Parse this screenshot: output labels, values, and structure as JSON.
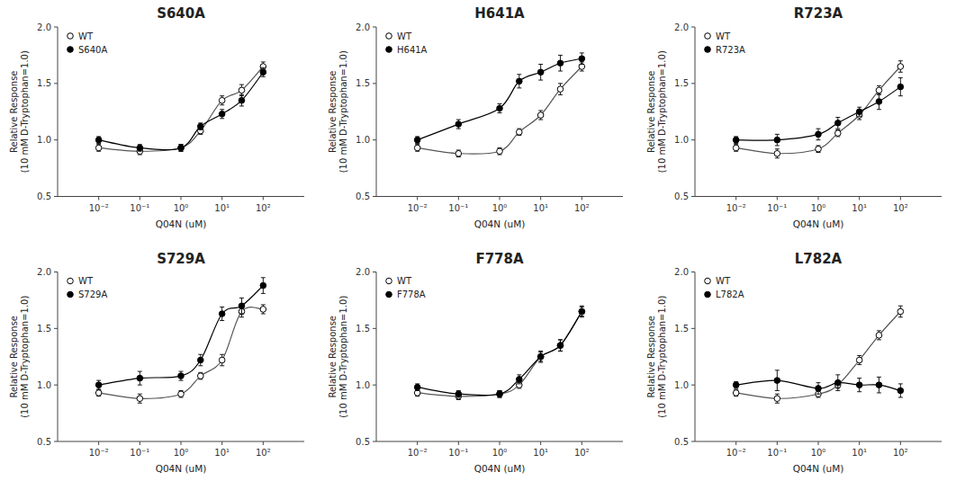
{
  "chart_data": [
    {
      "type": "line",
      "title": "S640A",
      "x_label": "Q04N (uM)",
      "y_label": [
        "Relative Response",
        "(10 mM D-Tryptophan=1.0)"
      ],
      "log": "x",
      "xlim": [
        0.001,
        1000
      ],
      "ylim": [
        0.5,
        2.0
      ],
      "xticks": [
        {
          "value": 0.01,
          "label": "10⁻²"
        },
        {
          "value": 0.1,
          "label": "10⁻¹"
        },
        {
          "value": 1,
          "label": "10⁰"
        },
        {
          "value": 10,
          "label": "10¹"
        },
        {
          "value": 100,
          "label": "10²"
        }
      ],
      "yticks": [
        0.5,
        {
          "value": 1.0,
          "label": "1.0"
        },
        1.5,
        {
          "value": 2.0,
          "label": "2.0"
        }
      ],
      "grid": false,
      "legend": "upper-left",
      "x": [
        0.01,
        0.1,
        1.0,
        3.0,
        10.0,
        30.0,
        100.0
      ],
      "series": [
        {
          "name": "WT",
          "color": "#555555",
          "marker": "open-circle",
          "line_style": "solid",
          "values": [
            0.93,
            0.9,
            0.93,
            1.08,
            1.35,
            1.44,
            1.65
          ],
          "errors": [
            0.03,
            0.03,
            0.03,
            0.03,
            0.04,
            0.05,
            0.04
          ]
        },
        {
          "name": "S640A",
          "color": "#000000",
          "marker": "filled-circle",
          "line_style": "solid",
          "values": [
            1.0,
            0.93,
            0.93,
            1.12,
            1.23,
            1.35,
            1.6
          ],
          "errors": [
            0.03,
            0.03,
            0.03,
            0.03,
            0.04,
            0.05,
            0.04
          ]
        }
      ]
    },
    {
      "type": "line",
      "title": "H641A",
      "x_label": "Q04N (uM)",
      "y_label": [
        "Relative Response",
        "(10 mM D-Tryptophan=1.0)"
      ],
      "log": "x",
      "xlim": [
        0.001,
        1000
      ],
      "ylim": [
        0.5,
        2.0
      ],
      "xticks": [
        {
          "value": 0.01,
          "label": "10⁻²"
        },
        {
          "value": 0.1,
          "label": "10⁻¹"
        },
        {
          "value": 1,
          "label": "10⁰"
        },
        {
          "value": 10,
          "label": "10¹"
        },
        {
          "value": 100,
          "label": "10²"
        }
      ],
      "yticks": [
        0.5,
        {
          "value": 1.0,
          "label": "1.0"
        },
        1.5,
        {
          "value": 2.0,
          "label": "2.0"
        }
      ],
      "grid": false,
      "legend": "upper-left",
      "x": [
        0.01,
        0.1,
        1.0,
        3.0,
        10.0,
        30.0,
        100.0
      ],
      "series": [
        {
          "name": "WT",
          "color": "#555555",
          "marker": "open-circle",
          "line_style": "solid",
          "values": [
            0.93,
            0.88,
            0.9,
            1.07,
            1.22,
            1.45,
            1.65
          ],
          "errors": [
            0.03,
            0.03,
            0.03,
            0.03,
            0.04,
            0.05,
            0.04
          ]
        },
        {
          "name": "H641A",
          "color": "#000000",
          "marker": "filled-circle",
          "line_style": "solid",
          "values": [
            1.0,
            1.14,
            1.28,
            1.52,
            1.6,
            1.68,
            1.72
          ],
          "errors": [
            0.03,
            0.04,
            0.04,
            0.06,
            0.07,
            0.07,
            0.05
          ]
        }
      ]
    },
    {
      "type": "line",
      "title": "R723A",
      "x_label": "Q04N (uM)",
      "y_label": [
        "Relative Response",
        "(10 mM D-Tryptophan=1.0)"
      ],
      "log": "x",
      "xlim": [
        0.001,
        1000
      ],
      "ylim": [
        0.5,
        2.0
      ],
      "xticks": [
        {
          "value": 0.01,
          "label": "10⁻²"
        },
        {
          "value": 0.1,
          "label": "10⁻¹"
        },
        {
          "value": 1,
          "label": "10⁰"
        },
        {
          "value": 10,
          "label": "10¹"
        },
        {
          "value": 100,
          "label": "10²"
        }
      ],
      "yticks": [
        0.5,
        {
          "value": 1.0,
          "label": "1.0"
        },
        1.5,
        {
          "value": 2.0,
          "label": "2.0"
        }
      ],
      "grid": false,
      "legend": "upper-left",
      "x": [
        0.01,
        0.1,
        1.0,
        3.0,
        10.0,
        30.0,
        100.0
      ],
      "series": [
        {
          "name": "WT",
          "color": "#555555",
          "marker": "open-circle",
          "line_style": "solid",
          "values": [
            0.93,
            0.88,
            0.92,
            1.06,
            1.22,
            1.44,
            1.65
          ],
          "errors": [
            0.03,
            0.04,
            0.03,
            0.03,
            0.04,
            0.04,
            0.05
          ]
        },
        {
          "name": "R723A",
          "color": "#000000",
          "marker": "filled-circle",
          "line_style": "solid",
          "values": [
            1.0,
            1.0,
            1.05,
            1.15,
            1.25,
            1.34,
            1.47
          ],
          "errors": [
            0.03,
            0.05,
            0.05,
            0.05,
            0.04,
            0.07,
            0.08
          ]
        }
      ]
    },
    {
      "type": "line",
      "title": "S729A",
      "x_label": "Q04N (uM)",
      "y_label": [
        "Relative Response",
        "(10 mM D-Tryptophan=1.0)"
      ],
      "log": "x",
      "xlim": [
        0.001,
        1000
      ],
      "ylim": [
        0.5,
        2.0
      ],
      "xticks": [
        {
          "value": 0.01,
          "label": "10⁻²"
        },
        {
          "value": 0.1,
          "label": "10⁻¹"
        },
        {
          "value": 1,
          "label": "10⁰"
        },
        {
          "value": 10,
          "label": "10¹"
        },
        {
          "value": 100,
          "label": "10²"
        }
      ],
      "yticks": [
        0.5,
        {
          "value": 1.0,
          "label": "1.0"
        },
        1.5,
        {
          "value": 2.0,
          "label": "2.0"
        }
      ],
      "grid": false,
      "legend": "upper-left",
      "x": [
        0.01,
        0.1,
        1.0,
        3.0,
        10.0,
        30.0,
        100.0
      ],
      "series": [
        {
          "name": "WT",
          "color": "#555555",
          "marker": "open-circle",
          "line_style": "solid",
          "values": [
            0.93,
            0.88,
            0.92,
            1.08,
            1.22,
            1.65,
            1.67
          ],
          "errors": [
            0.03,
            0.04,
            0.03,
            0.03,
            0.05,
            0.05,
            0.04
          ]
        },
        {
          "name": "S729A",
          "color": "#000000",
          "marker": "filled-circle",
          "line_style": "solid",
          "values": [
            1.0,
            1.06,
            1.08,
            1.22,
            1.63,
            1.7,
            1.88
          ],
          "errors": [
            0.04,
            0.06,
            0.04,
            0.05,
            0.06,
            0.07,
            0.07
          ]
        }
      ]
    },
    {
      "type": "line",
      "title": "F778A",
      "x_label": "Q04N (uM)",
      "y_label": [
        "Relative Response",
        "(10 mM D-Tryptophan=1.0)"
      ],
      "log": "x",
      "xlim": [
        0.001,
        1000
      ],
      "ylim": [
        0.5,
        2.0
      ],
      "xticks": [
        {
          "value": 0.01,
          "label": "10⁻²"
        },
        {
          "value": 0.1,
          "label": "10⁻¹"
        },
        {
          "value": 1,
          "label": "10⁰"
        },
        {
          "value": 10,
          "label": "10¹"
        },
        {
          "value": 100,
          "label": "10²"
        }
      ],
      "yticks": [
        0.5,
        {
          "value": 1.0,
          "label": "1.0"
        },
        1.5,
        {
          "value": 2.0,
          "label": "2.0"
        }
      ],
      "grid": false,
      "legend": "upper-left",
      "x": [
        0.01,
        0.1,
        1.0,
        3.0,
        10.0,
        30.0,
        100.0
      ],
      "series": [
        {
          "name": "WT",
          "color": "#555555",
          "marker": "open-circle",
          "line_style": "solid",
          "values": [
            0.93,
            0.9,
            0.92,
            1.0,
            1.25,
            1.35,
            1.65
          ],
          "errors": [
            0.03,
            0.03,
            0.03,
            0.03,
            0.04,
            0.05,
            0.04
          ]
        },
        {
          "name": "F778A",
          "color": "#000000",
          "marker": "filled-circle",
          "line_style": "solid",
          "values": [
            0.98,
            0.92,
            0.92,
            1.05,
            1.25,
            1.35,
            1.65
          ],
          "errors": [
            0.03,
            0.03,
            0.03,
            0.04,
            0.05,
            0.05,
            0.05
          ]
        }
      ]
    },
    {
      "type": "line",
      "title": "L782A",
      "x_label": "Q04N (uM)",
      "y_label": [
        "Relative Response",
        "(10 mM D-Tryptophan=1.0)"
      ],
      "log": "x",
      "xlim": [
        0.001,
        1000
      ],
      "ylim": [
        0.5,
        2.0
      ],
      "xticks": [
        {
          "value": 0.01,
          "label": "10⁻²"
        },
        {
          "value": 0.1,
          "label": "10⁻¹"
        },
        {
          "value": 1,
          "label": "10⁰"
        },
        {
          "value": 10,
          "label": "10¹"
        },
        {
          "value": 100,
          "label": "10²"
        }
      ],
      "yticks": [
        0.5,
        {
          "value": 1.0,
          "label": "1.0"
        },
        1.5,
        {
          "value": 2.0,
          "label": "2.0"
        }
      ],
      "grid": false,
      "legend": "upper-left",
      "x": [
        0.01,
        0.1,
        1.0,
        3.0,
        10.0,
        30.0,
        100.0
      ],
      "series": [
        {
          "name": "WT",
          "color": "#555555",
          "marker": "open-circle",
          "line_style": "solid",
          "values": [
            0.93,
            0.88,
            0.92,
            1.0,
            1.22,
            1.44,
            1.65
          ],
          "errors": [
            0.03,
            0.04,
            0.03,
            0.03,
            0.04,
            0.04,
            0.05
          ]
        },
        {
          "name": "L782A",
          "color": "#000000",
          "marker": "filled-circle",
          "line_style": "solid",
          "values": [
            1.0,
            1.04,
            0.97,
            1.02,
            1.0,
            1.0,
            0.95
          ],
          "errors": [
            0.03,
            0.09,
            0.05,
            0.07,
            0.06,
            0.07,
            0.06
          ]
        }
      ]
    }
  ]
}
